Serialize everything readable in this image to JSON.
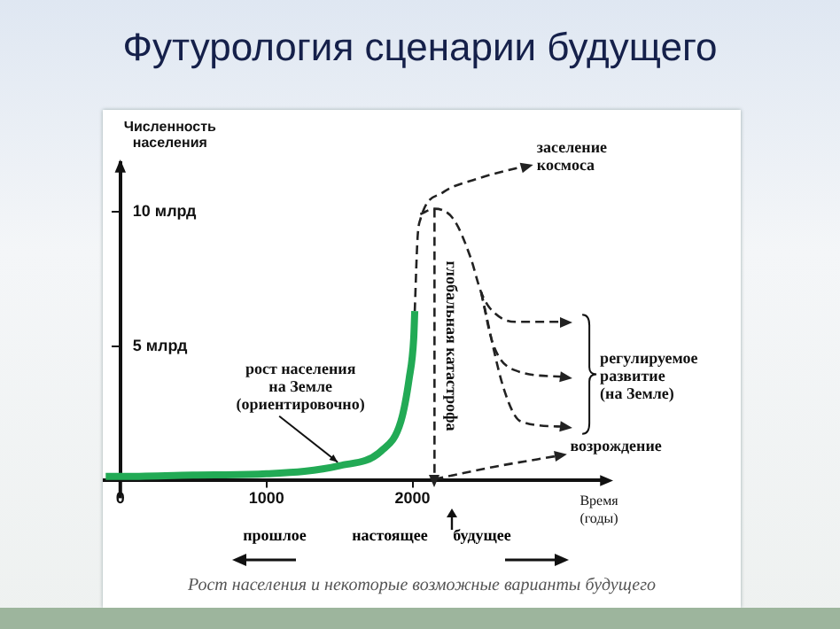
{
  "chart_data": {
    "type": "line",
    "title": "Футурология сценарии будущего",
    "xlabel": "Время\n(годы)",
    "ylabel": "Численность\nнаселения",
    "xlim": [
      -120,
      3300
    ],
    "ylim": [
      0,
      11.8
    ],
    "xticks": [
      0,
      1000,
      2000
    ],
    "yticks": [
      {
        "value": 5,
        "label": "5 млрд"
      },
      {
        "value": 10,
        "label": "10 млрд"
      }
    ],
    "grid": false,
    "legend": false,
    "series": [
      {
        "color": "#22aa55",
        "line_style": "solid",
        "x": [
          -100,
          0,
          500,
          1000,
          1500,
          1786,
          1920,
          1977,
          2008,
          2015
        ],
        "values": [
          0.15,
          0.15,
          0.2,
          0.25,
          0.55,
          1.1,
          2.2,
          3.8,
          5.3,
          6.3
        ]
      },
      {
        "color": "#222222",
        "line_style": "dashed",
        "x": [
          2015,
          2034,
          2053,
          2206,
          2434,
          2777
        ],
        "values": [
          6.3,
          9.0,
          9.7,
          10.7,
          11.2,
          11.7
        ]
      },
      {
        "color": "#222222",
        "line_style": "dashed",
        "x": [
          2053,
          2149,
          2282,
          2396,
          2469,
          2530,
          2700,
          3040
        ],
        "values": [
          9.9,
          10.1,
          9.7,
          8.3,
          7.0,
          6.4,
          5.9,
          5.9
        ]
      },
      {
        "color": "#222222",
        "line_style": "dashed",
        "x": [
          2469,
          2549,
          2700,
          3040
        ],
        "values": [
          7.0,
          5.1,
          4.1,
          3.85
        ]
      },
      {
        "color": "#222222",
        "line_style": "dashed",
        "x": [
          2469,
          2625,
          2740,
          3040
        ],
        "values": [
          7.0,
          3.4,
          2.2,
          2.0
        ]
      },
      {
        "color": "#222222",
        "line_style": "dashed",
        "x": [
          2150,
          2150
        ],
        "values": [
          10.1,
          0
        ]
      },
      {
        "color": "#222222",
        "line_style": "dashed",
        "x": [
          2150,
          2549,
          3006
        ],
        "values": [
          0.05,
          0.5,
          0.93
        ]
      }
    ],
    "annotations": [
      {
        "text": "рост населения\nна Земле\n(ориентировочно)",
        "x": 1500,
        "y": 0.55
      },
      {
        "text": "заселение\nкосмоса",
        "x": 2777,
        "y": 11.7
      },
      {
        "text": "регулируемое\nразвитие\n(на Земле)",
        "x": 3040,
        "y": 3.85
      },
      {
        "text": "возрождение",
        "x": 3006,
        "y": 0.93
      },
      {
        "text": "глобальная катастрофа",
        "x": 2150,
        "y": 5
      },
      "прошлое",
      "настоящее",
      "будущее",
      "Рост населения и некоторые возможные варианты будущего"
    ]
  }
}
